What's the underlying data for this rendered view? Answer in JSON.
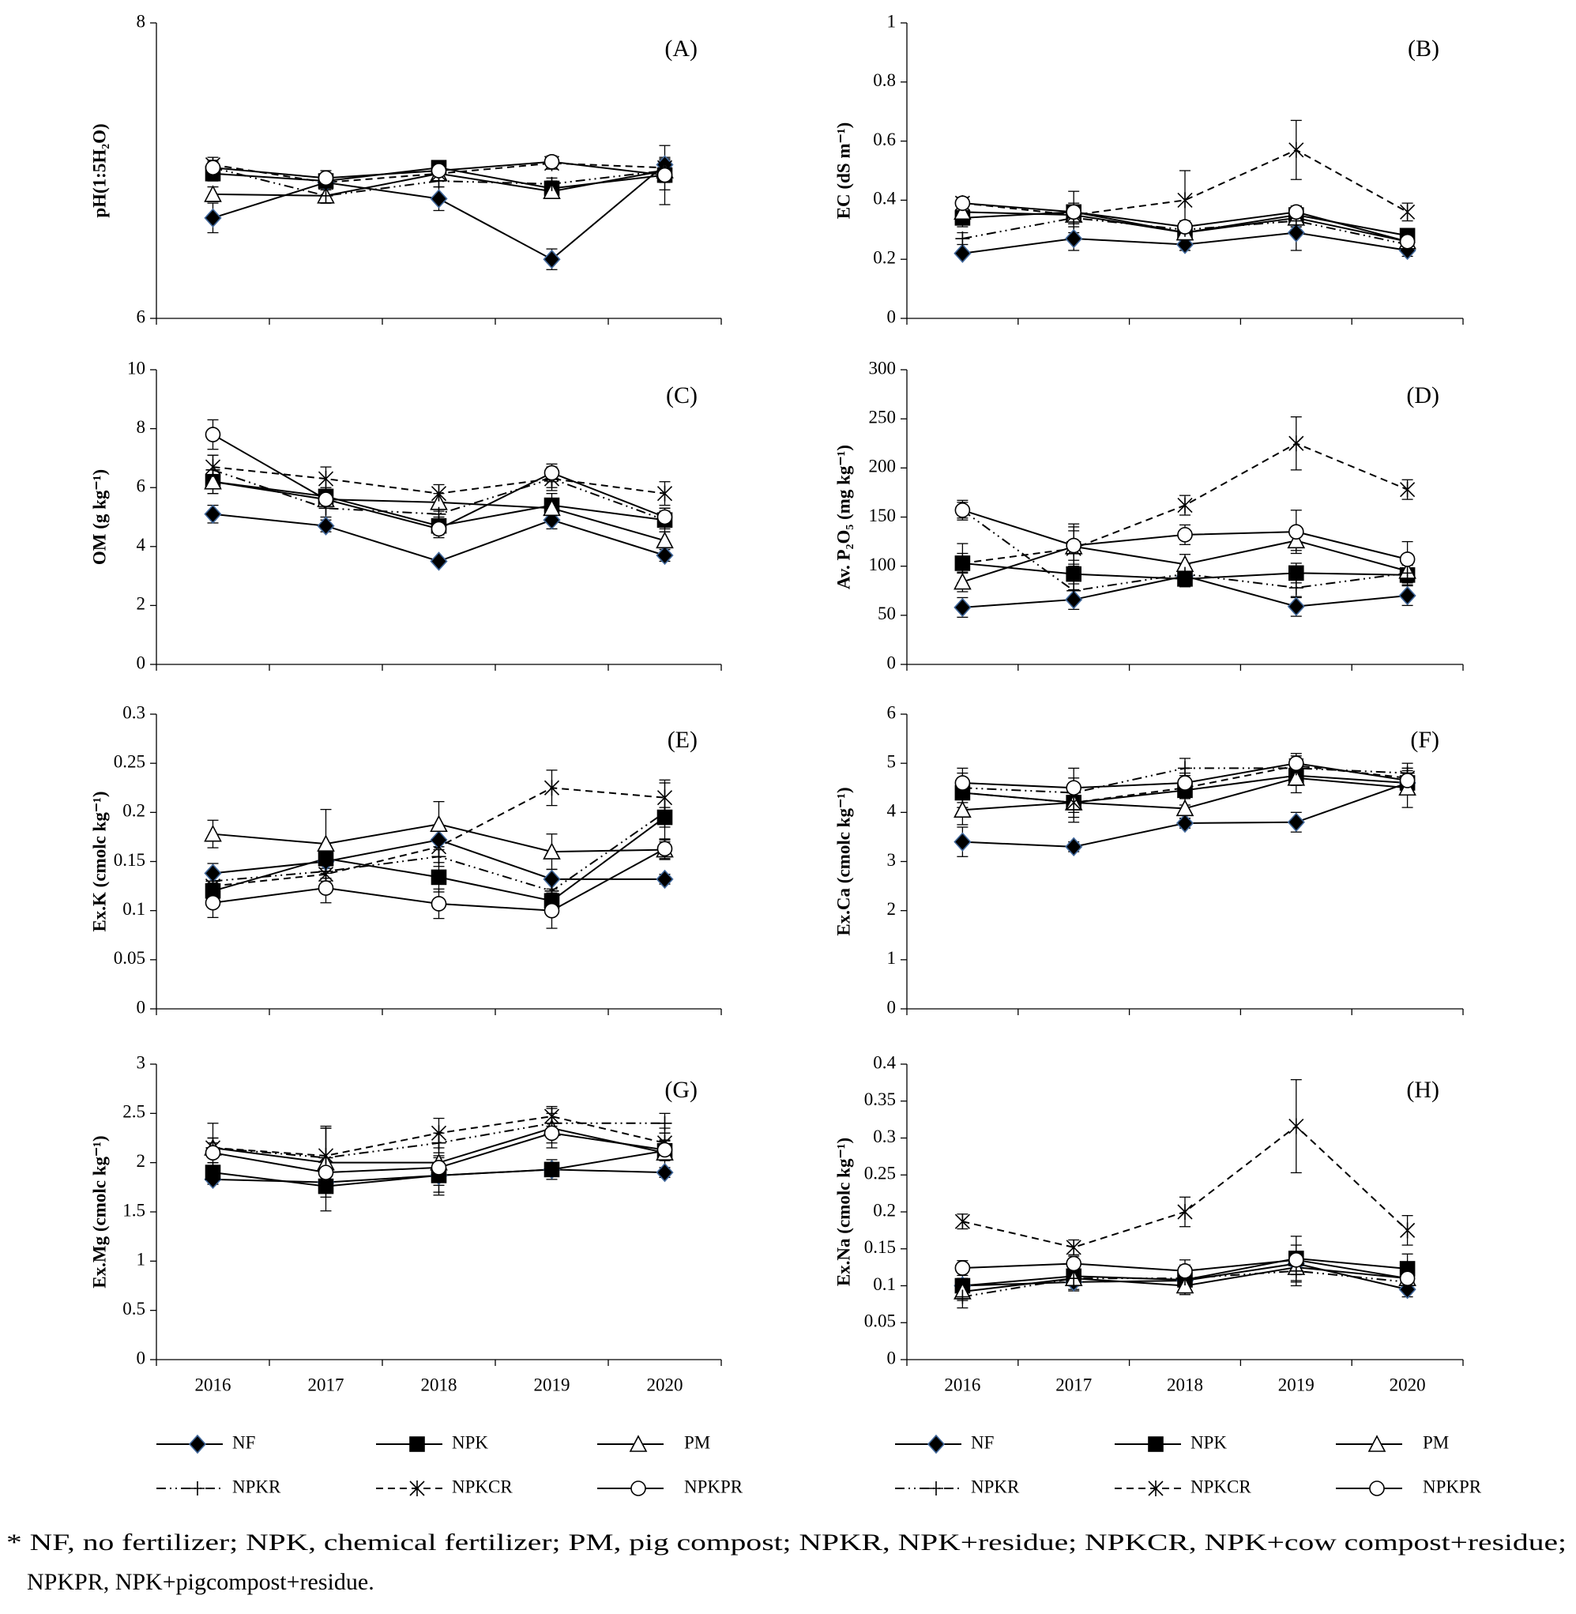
{
  "categories": [
    2016,
    2017,
    2018,
    2019,
    2020
  ],
  "legend": [
    {
      "name": "NF",
      "color": "#000000",
      "edge": "#41689c",
      "marker": "diamond",
      "dash": "solid"
    },
    {
      "name": "NPK",
      "color": "#000000",
      "marker": "square",
      "dash": "solid"
    },
    {
      "name": "PM",
      "color": "#000000",
      "marker": "triangle",
      "dash": "solid"
    },
    {
      "name": "NPKR",
      "color": "#000000",
      "marker": "plus",
      "dash": "dashdotdot"
    },
    {
      "name": "NPKCR",
      "color": "#000000",
      "marker": "star",
      "dash": "dashed"
    },
    {
      "name": "NPKPR",
      "color": "#000000",
      "marker": "circle",
      "dash": "solid"
    }
  ],
  "footnote": [
    "* NF, no fertilizer; NPK, chemical fertilizer; PM, pig compost; NPKR, NPK+residue; NPKCR, NPK+cow compost+residue;",
    "NPKPR, NPK+pigcompost+residue."
  ],
  "chart_data": [
    {
      "type": "line",
      "label": "(A)",
      "ylabel": "pH(1:5H₂O)",
      "ylim": [
        6,
        8
      ],
      "yticks": [
        6,
        8
      ],
      "series": [
        {
          "values": [
            6.68,
            6.92,
            6.81,
            6.4,
            7.04
          ],
          "errors": [
            0.1,
            0.05,
            0.08,
            0.07,
            0.05
          ]
        },
        {
          "values": [
            6.98,
            6.93,
            7.02,
            6.88,
            6.97
          ],
          "errors": [
            0.05,
            0.05,
            0.04,
            0.05,
            0.1
          ]
        },
        {
          "values": [
            6.84,
            6.83,
            6.98,
            6.86,
            7.0
          ],
          "errors": [
            0.05,
            0.05,
            0.03,
            0.04,
            0.08
          ]
        },
        {
          "values": [
            7.02,
            6.83,
            6.93,
            6.91,
            7.0
          ],
          "errors": [
            0.04,
            0.05,
            0.04,
            0.04,
            0.05
          ]
        },
        {
          "values": [
            7.04,
            6.92,
            6.98,
            7.05,
            7.02
          ],
          "errors": [
            0.05,
            0.05,
            0.04,
            0.04,
            0.06
          ]
        },
        {
          "values": [
            7.02,
            6.95,
            7.0,
            7.06,
            6.97
          ],
          "errors": [
            0.05,
            0.05,
            0.03,
            0.04,
            0.2
          ]
        }
      ]
    },
    {
      "type": "line",
      "label": "(B)",
      "ylabel": "EC (dS m⁻¹)",
      "ylim": [
        0,
        1
      ],
      "yticks": [
        0,
        0.2,
        0.4,
        0.6,
        0.8,
        1
      ],
      "series": [
        {
          "values": [
            0.22,
            0.27,
            0.25,
            0.29,
            0.23
          ],
          "errors": [
            0.01,
            0.04,
            0.02,
            0.06,
            0.02
          ]
        },
        {
          "values": [
            0.34,
            0.36,
            0.29,
            0.35,
            0.28
          ],
          "errors": [
            0.03,
            0.03,
            0.03,
            0.03,
            0.02
          ]
        },
        {
          "values": [
            0.36,
            0.35,
            0.29,
            0.34,
            0.26
          ],
          "errors": [
            0.02,
            0.02,
            0.02,
            0.03,
            0.02
          ]
        },
        {
          "values": [
            0.27,
            0.34,
            0.3,
            0.33,
            0.25
          ],
          "errors": [
            0.02,
            0.02,
            0.03,
            0.02,
            0.02
          ]
        },
        {
          "values": [
            0.39,
            0.35,
            0.4,
            0.57,
            0.36
          ],
          "errors": [
            0.02,
            0.03,
            0.1,
            0.1,
            0.03
          ]
        },
        {
          "values": [
            0.39,
            0.36,
            0.31,
            0.36,
            0.26
          ],
          "errors": [
            0.02,
            0.07,
            0.02,
            0.02,
            0.02
          ]
        }
      ]
    },
    {
      "type": "line",
      "label": "(C)",
      "ylabel": "OM (g kg⁻¹)",
      "ylim": [
        0,
        10
      ],
      "yticks": [
        0,
        2,
        4,
        6,
        8,
        10
      ],
      "series": [
        {
          "values": [
            5.1,
            4.7,
            3.5,
            4.9,
            3.7
          ],
          "errors": [
            0.3,
            0.2,
            0.1,
            0.3,
            0.2
          ]
        },
        {
          "values": [
            6.2,
            5.7,
            4.7,
            5.4,
            4.9
          ],
          "errors": [
            0.4,
            0.3,
            0.3,
            0.4,
            0.3
          ]
        },
        {
          "values": [
            6.2,
            5.6,
            5.5,
            5.3,
            4.2
          ],
          "errors": [
            0.4,
            0.3,
            0.3,
            0.3,
            0.3
          ]
        },
        {
          "values": [
            6.6,
            5.3,
            5.1,
            6.3,
            4.9
          ],
          "errors": [
            0.5,
            0.3,
            0.4,
            0.3,
            0.4
          ]
        },
        {
          "values": [
            6.7,
            6.3,
            5.8,
            6.3,
            5.8
          ],
          "errors": [
            0.4,
            0.4,
            0.3,
            0.4,
            0.4
          ]
        },
        {
          "values": [
            7.8,
            5.6,
            4.6,
            6.5,
            5.0
          ],
          "errors": [
            0.5,
            0.3,
            0.3,
            0.3,
            0.3
          ]
        }
      ]
    },
    {
      "type": "line",
      "label": "(D)",
      "ylabel": "Av. P₂O₅ (mg kg⁻¹)",
      "ylim": [
        0,
        300
      ],
      "yticks": [
        0,
        50,
        100,
        150,
        200,
        250,
        300
      ],
      "series": [
        {
          "values": [
            58,
            66,
            90,
            59,
            70
          ],
          "errors": [
            10,
            10,
            8,
            10,
            10
          ]
        },
        {
          "values": [
            103,
            92,
            87,
            93,
            91
          ],
          "errors": [
            20,
            10,
            8,
            10,
            10
          ]
        },
        {
          "values": [
            84,
            120,
            102,
            126,
            95
          ],
          "errors": [
            10,
            20,
            10,
            10,
            10
          ]
        },
        {
          "values": [
            157,
            75,
            92,
            78,
            93
          ],
          "errors": [
            10,
            10,
            10,
            10,
            10
          ]
        },
        {
          "values": [
            103,
            118,
            162,
            225,
            178
          ],
          "errors": [
            10,
            25,
            10,
            27,
            10
          ]
        },
        {
          "values": [
            157,
            121,
            132,
            135,
            107
          ],
          "errors": [
            8,
            15,
            10,
            22,
            18
          ]
        }
      ]
    },
    {
      "type": "line",
      "label": "(E)",
      "ylabel": "Ex.K (cmolc kg⁻¹)",
      "ylim": [
        0,
        0.3
      ],
      "yticks": [
        0,
        0.05,
        0.1,
        0.15,
        0.2,
        0.25,
        0.3
      ],
      "series": [
        {
          "values": [
            0.138,
            0.15,
            0.172,
            0.132,
            0.132
          ],
          "errors": [
            0.01,
            0.01,
            0.01,
            0.01,
            0.005
          ]
        },
        {
          "values": [
            0.12,
            0.153,
            0.134,
            0.11,
            0.195
          ],
          "errors": [
            0.01,
            0.01,
            0.015,
            0.01,
            0.01
          ]
        },
        {
          "values": [
            0.178,
            0.168,
            0.188,
            0.16,
            0.162
          ],
          "errors": [
            0.014,
            0.035,
            0.023,
            0.018,
            0.01
          ]
        },
        {
          "values": [
            0.13,
            0.14,
            0.155,
            0.12,
            0.2
          ],
          "errors": [
            0.01,
            0.01,
            0.01,
            0.01,
            0.03
          ]
        },
        {
          "values": [
            0.125,
            0.137,
            0.165,
            0.225,
            0.215
          ],
          "errors": [
            0.01,
            0.01,
            0.01,
            0.018,
            0.018
          ]
        },
        {
          "values": [
            0.108,
            0.123,
            0.107,
            0.1,
            0.163
          ],
          "errors": [
            0.015,
            0.015,
            0.015,
            0.018,
            0.01
          ]
        }
      ]
    },
    {
      "type": "line",
      "label": "(F)",
      "ylabel": "Ex.Ca (cmolc kg⁻¹)",
      "ylim": [
        0,
        6
      ],
      "yticks": [
        0,
        1,
        2,
        3,
        4,
        5,
        6
      ],
      "series": [
        {
          "values": [
            3.4,
            3.3,
            3.78,
            3.8,
            4.6
          ],
          "errors": [
            0.3,
            0.1,
            0.1,
            0.2,
            0.2
          ]
        },
        {
          "values": [
            4.4,
            4.2,
            4.45,
            4.75,
            4.6
          ],
          "errors": [
            0.3,
            0.3,
            0.3,
            0.2,
            0.2
          ]
        },
        {
          "values": [
            4.05,
            4.2,
            4.08,
            4.7,
            4.5
          ],
          "errors": [
            0.3,
            0.2,
            0.2,
            0.3,
            0.4
          ]
        },
        {
          "values": [
            4.5,
            4.4,
            4.9,
            4.9,
            4.8
          ],
          "errors": [
            0.3,
            0.3,
            0.2,
            0.2,
            0.2
          ]
        },
        {
          "values": [
            4.4,
            4.2,
            4.5,
            4.95,
            4.7
          ],
          "errors": [
            0.3,
            0.4,
            0.2,
            0.2,
            0.2
          ]
        },
        {
          "values": [
            4.6,
            4.5,
            4.6,
            5.0,
            4.65
          ],
          "errors": [
            0.3,
            0.4,
            0.2,
            0.2,
            0.2
          ]
        }
      ]
    },
    {
      "type": "line",
      "label": "(G)",
      "ylabel": "Ex.Mg (cmolc kg⁻¹)",
      "ylim": [
        0,
        3
      ],
      "yticks": [
        0,
        0.5,
        1,
        1.5,
        2,
        2.5,
        3
      ],
      "series": [
        {
          "values": [
            1.83,
            1.8,
            1.87,
            1.93,
            1.9
          ],
          "errors": [
            0.05,
            0.05,
            0.1,
            0.05,
            0.05
          ]
        },
        {
          "values": [
            1.9,
            1.76,
            1.87,
            1.93,
            2.12
          ],
          "errors": [
            0.1,
            0.25,
            0.2,
            0.1,
            0.1
          ]
        },
        {
          "values": [
            2.15,
            2.0,
            2.0,
            2.35,
            2.1
          ],
          "errors": [
            0.25,
            0.35,
            0.3,
            0.2,
            0.2
          ]
        },
        {
          "values": [
            2.15,
            2.05,
            2.2,
            2.4,
            2.4
          ],
          "errors": [
            0.1,
            0.3,
            0.1,
            0.1,
            0.1
          ]
        },
        {
          "values": [
            2.15,
            2.07,
            2.3,
            2.47,
            2.2
          ],
          "errors": [
            0.1,
            0.3,
            0.15,
            0.1,
            0.15
          ]
        },
        {
          "values": [
            2.1,
            1.9,
            1.95,
            2.3,
            2.13
          ],
          "errors": [
            0.1,
            0.1,
            0.1,
            0.1,
            0.1
          ]
        }
      ]
    },
    {
      "type": "line",
      "label": "(H)",
      "ylabel": "Ex.Na (cmolc kg⁻¹)",
      "ylim": [
        0,
        0.4
      ],
      "yticks": [
        0,
        0.05,
        0.1,
        0.15,
        0.2,
        0.25,
        0.3,
        0.35,
        0.4
      ],
      "series": [
        {
          "values": [
            0.1,
            0.105,
            0.107,
            0.13,
            0.095
          ],
          "errors": [
            0.01,
            0.01,
            0.01,
            0.01,
            0.01
          ]
        },
        {
          "values": [
            0.1,
            0.113,
            0.108,
            0.137,
            0.123
          ],
          "errors": [
            0.02,
            0.02,
            0.02,
            0.03,
            0.02
          ]
        },
        {
          "values": [
            0.092,
            0.11,
            0.1,
            0.125,
            0.11
          ],
          "errors": [
            0.01,
            0.01,
            0.01,
            0.02,
            0.01
          ]
        },
        {
          "values": [
            0.085,
            0.11,
            0.11,
            0.12,
            0.105
          ],
          "errors": [
            0.015,
            0.01,
            0.01,
            0.02,
            0.01
          ]
        },
        {
          "values": [
            0.187,
            0.152,
            0.2,
            0.316,
            0.175
          ],
          "errors": [
            0.01,
            0.01,
            0.02,
            0.063,
            0.02
          ]
        },
        {
          "values": [
            0.124,
            0.13,
            0.12,
            0.135,
            0.11
          ],
          "errors": [
            0.01,
            0.01,
            0.015,
            0.02,
            0.01
          ]
        }
      ]
    }
  ]
}
